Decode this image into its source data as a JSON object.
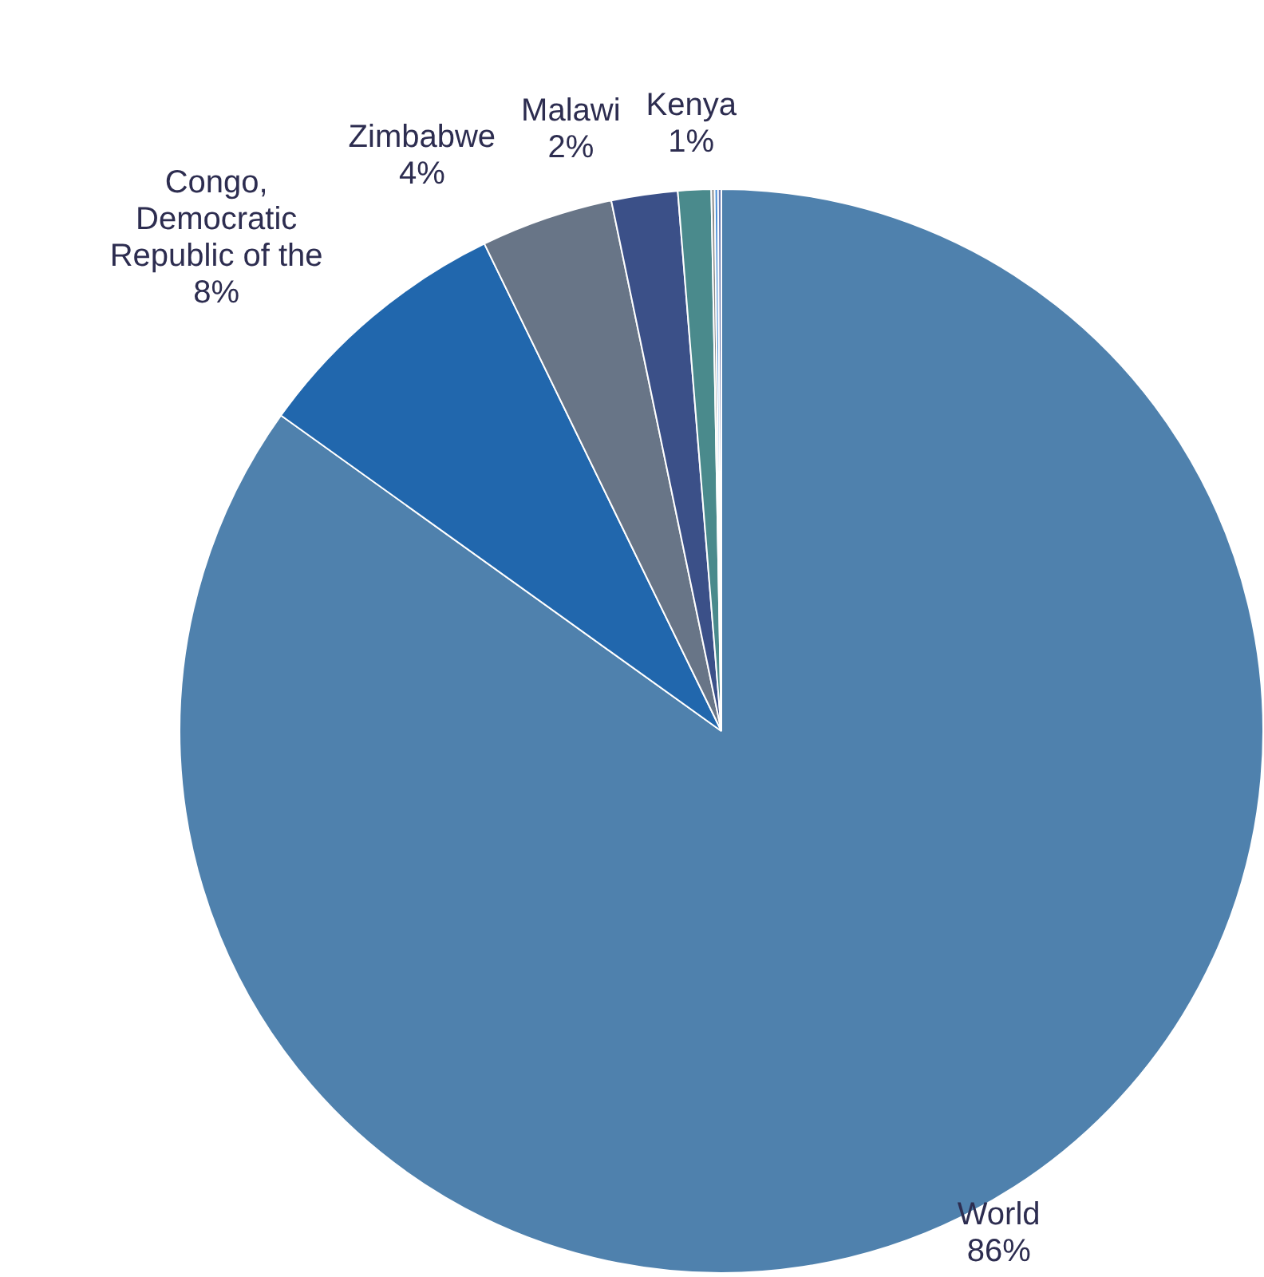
{
  "chart_data": {
    "type": "pie",
    "categories": [
      "World",
      "Congo, Democratic Republic of the",
      "Zimbabwe",
      "Malawi",
      "Kenya",
      null,
      null,
      null
    ],
    "values": [
      86,
      8,
      4,
      2,
      1,
      0.1,
      0.1,
      0.1
    ],
    "colors": [
      "#4f81ad",
      "#2167ad",
      "#687587",
      "#3b5088",
      "#4a8a8c",
      "#8a8a8a",
      "#4a90d9",
      "#6a7ab0"
    ],
    "value_labels": [
      "86%",
      "8%",
      "4%",
      "2%",
      "1%",
      null,
      null,
      null
    ],
    "legend": false
  }
}
